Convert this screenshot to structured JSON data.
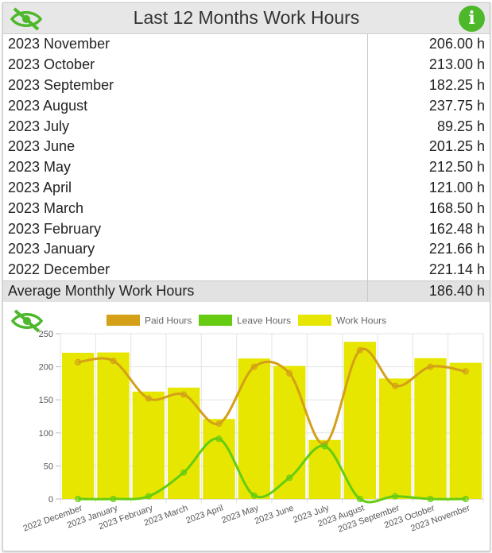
{
  "header": {
    "title": "Last 12 Months Work Hours",
    "hide_icon": "eye-slash-icon",
    "info_icon": "info-icon"
  },
  "table": {
    "rows": [
      {
        "month": "2023 November",
        "hours": "206.00 h"
      },
      {
        "month": "2023 October",
        "hours": "213.00 h"
      },
      {
        "month": "2023 September",
        "hours": "182.25 h"
      },
      {
        "month": "2023 August",
        "hours": "237.75 h"
      },
      {
        "month": "2023 July",
        "hours": "89.25 h"
      },
      {
        "month": "2023 June",
        "hours": "201.25 h"
      },
      {
        "month": "2023 May",
        "hours": "212.50 h"
      },
      {
        "month": "2023 April",
        "hours": "121.00 h"
      },
      {
        "month": "2023 March",
        "hours": "168.50 h"
      },
      {
        "month": "2023 February",
        "hours": "162.48 h"
      },
      {
        "month": "2023 January",
        "hours": "221.66 h"
      },
      {
        "month": "2022 December",
        "hours": "221.14 h"
      }
    ],
    "average": {
      "label": "Average Monthly Work Hours",
      "value": "186.40 h"
    }
  },
  "colors": {
    "accent_green": "#4cb82a",
    "paid": "#d4a017",
    "leave": "#66cc11",
    "work": "#e6e600"
  },
  "chart_data": {
    "type": "bar",
    "categories": [
      "2022 December",
      "2023 January",
      "2023 February",
      "2023 March",
      "2023 April",
      "2023 May",
      "2023 June",
      "2023 July",
      "2023 August",
      "2023 September",
      "2023 October",
      "2023 November"
    ],
    "ylim": [
      0,
      250
    ],
    "yticks": [
      0,
      50,
      100,
      150,
      200,
      250
    ],
    "grid": true,
    "legend_position": "top",
    "series": [
      {
        "name": "Paid Hours",
        "type": "line",
        "color": "#d4a017",
        "values": [
          207,
          209,
          152,
          158,
          114,
          200,
          190,
          83,
          225,
          171,
          200,
          193
        ]
      },
      {
        "name": "Leave Hours",
        "type": "line",
        "color": "#66cc11",
        "values": [
          0,
          0,
          4,
          40,
          91,
          5,
          32,
          80,
          0,
          4,
          0,
          0
        ]
      },
      {
        "name": "Work Hours",
        "type": "bar",
        "color": "#e6e600",
        "values": [
          221.14,
          221.66,
          162.48,
          168.5,
          121,
          212.5,
          201.25,
          89.25,
          237.75,
          182.25,
          213,
          206
        ]
      }
    ]
  }
}
